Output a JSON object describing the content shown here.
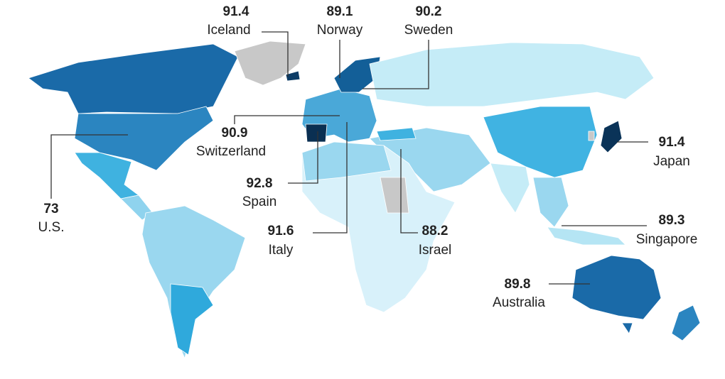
{
  "annotations": [
    {
      "value": 91.4,
      "country": "Iceland"
    },
    {
      "value": 89.1,
      "country": "Norway"
    },
    {
      "value": 90.2,
      "country": "Sweden"
    },
    {
      "value": 90.9,
      "country": "Switzerland"
    },
    {
      "value": 92.8,
      "country": "Spain"
    },
    {
      "value": 91.6,
      "country": "Italy"
    },
    {
      "value": 88.2,
      "country": "Israel"
    },
    {
      "value": 73,
      "country": "U.S."
    },
    {
      "value": 91.4,
      "country": "Japan"
    },
    {
      "value": 89.3,
      "country": "Singapore"
    },
    {
      "value": 89.8,
      "country": "Australia"
    }
  ]
}
